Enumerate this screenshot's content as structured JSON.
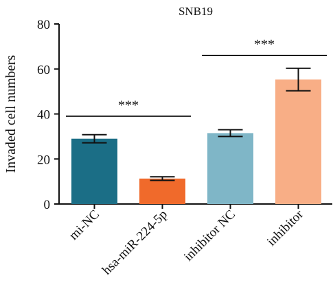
{
  "chart_data": {
    "type": "bar",
    "title": "SNB19",
    "xlabel": "",
    "ylabel": "Invaded cell numbers",
    "ylim": [
      0,
      80
    ],
    "yticks": [
      0,
      20,
      40,
      60,
      80
    ],
    "grid": false,
    "categories": [
      "mi-NC",
      "hsa-miR-224-5p",
      "inhibitor NC",
      "inhibitor"
    ],
    "values": [
      29,
      11.3,
      31.5,
      55.3
    ],
    "errors": [
      1.8,
      0.8,
      1.5,
      5
    ],
    "colors": [
      "#1b6e86",
      "#f06a2b",
      "#7fb6c7",
      "#f8ae86"
    ],
    "significance": [
      {
        "from": 0,
        "to": 1,
        "label": "***",
        "y": 39
      },
      {
        "from": 2,
        "to": 3,
        "label": "***",
        "y": 66
      }
    ]
  }
}
